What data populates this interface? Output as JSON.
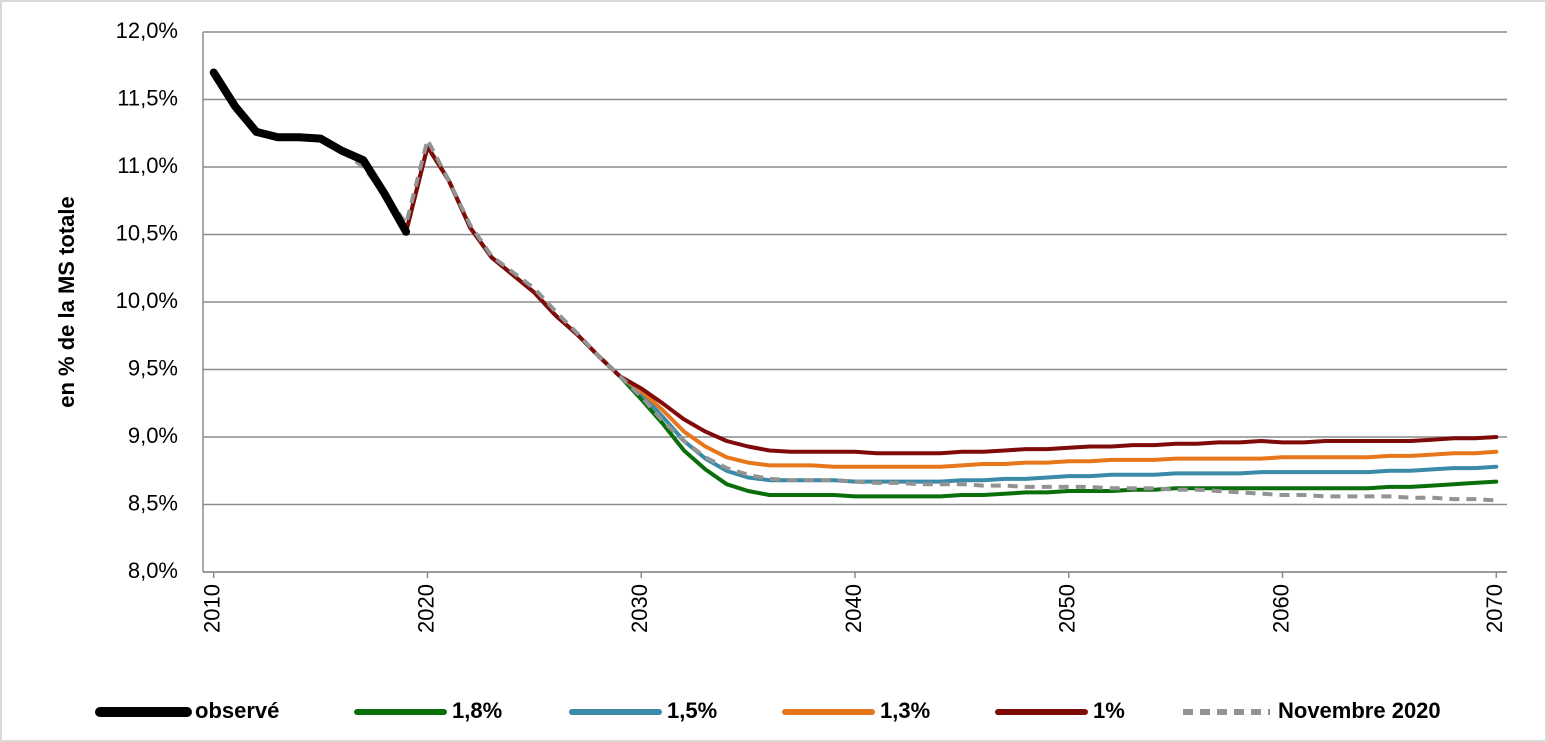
{
  "chart_data": {
    "type": "line",
    "y_label": "en % de la MS totale",
    "x": [
      2010,
      2011,
      2012,
      2013,
      2014,
      2015,
      2016,
      2017,
      2018,
      2019,
      2020,
      2021,
      2022,
      2023,
      2024,
      2025,
      2026,
      2027,
      2028,
      2029,
      2030,
      2031,
      2032,
      2033,
      2034,
      2035,
      2036,
      2037,
      2038,
      2039,
      2040,
      2041,
      2042,
      2043,
      2044,
      2045,
      2046,
      2047,
      2048,
      2049,
      2050,
      2051,
      2052,
      2053,
      2054,
      2055,
      2056,
      2057,
      2058,
      2059,
      2060,
      2061,
      2062,
      2063,
      2064,
      2065,
      2066,
      2067,
      2068,
      2069,
      2070
    ],
    "series": [
      {
        "name": "observé",
        "color": "#000000",
        "width": 8,
        "values": [
          11.7,
          11.45,
          11.26,
          11.22,
          11.22,
          11.21,
          11.12,
          11.05,
          10.8,
          10.52,
          null,
          null,
          null,
          null,
          null,
          null,
          null,
          null,
          null,
          null,
          null,
          null,
          null,
          null,
          null,
          null,
          null,
          null,
          null,
          null,
          null,
          null,
          null,
          null,
          null,
          null,
          null,
          null,
          null,
          null,
          null,
          null,
          null,
          null,
          null,
          null,
          null,
          null,
          null,
          null,
          null,
          null,
          null,
          null,
          null,
          null,
          null,
          null,
          null,
          null,
          null
        ]
      },
      {
        "name": "1,8%",
        "color": "#0a6e0a",
        "width": 4,
        "values": [
          null,
          null,
          null,
          null,
          null,
          null,
          null,
          null,
          null,
          10.52,
          11.15,
          10.9,
          10.55,
          10.33,
          10.2,
          10.07,
          9.9,
          9.76,
          9.6,
          9.45,
          9.28,
          9.1,
          8.9,
          8.76,
          8.65,
          8.6,
          8.57,
          8.57,
          8.57,
          8.57,
          8.56,
          8.56,
          8.56,
          8.56,
          8.56,
          8.57,
          8.57,
          8.58,
          8.59,
          8.59,
          8.6,
          8.6,
          8.6,
          8.61,
          8.61,
          8.62,
          8.62,
          8.62,
          8.62,
          8.62,
          8.62,
          8.62,
          8.62,
          8.62,
          8.62,
          8.63,
          8.63,
          8.64,
          8.65,
          8.66,
          8.67
        ]
      },
      {
        "name": "1,5%",
        "color": "#3a8aa8",
        "width": 4,
        "values": [
          null,
          null,
          null,
          null,
          null,
          null,
          null,
          null,
          null,
          10.52,
          11.15,
          10.9,
          10.55,
          10.33,
          10.2,
          10.07,
          9.9,
          9.76,
          9.6,
          9.45,
          9.32,
          9.15,
          8.97,
          8.84,
          8.75,
          8.7,
          8.68,
          8.68,
          8.68,
          8.68,
          8.67,
          8.67,
          8.67,
          8.67,
          8.67,
          8.68,
          8.68,
          8.69,
          8.69,
          8.7,
          8.71,
          8.71,
          8.72,
          8.72,
          8.72,
          8.73,
          8.73,
          8.73,
          8.73,
          8.74,
          8.74,
          8.74,
          8.74,
          8.74,
          8.74,
          8.75,
          8.75,
          8.76,
          8.77,
          8.77,
          8.78
        ]
      },
      {
        "name": "1,3%",
        "color": "#e8761a",
        "width": 4,
        "values": [
          null,
          null,
          null,
          null,
          null,
          null,
          null,
          null,
          null,
          10.52,
          11.15,
          10.9,
          10.55,
          10.33,
          10.2,
          10.07,
          9.9,
          9.76,
          9.6,
          9.45,
          9.34,
          9.2,
          9.04,
          8.93,
          8.85,
          8.81,
          8.79,
          8.79,
          8.79,
          8.78,
          8.78,
          8.78,
          8.78,
          8.78,
          8.78,
          8.79,
          8.8,
          8.8,
          8.81,
          8.81,
          8.82,
          8.82,
          8.83,
          8.83,
          8.83,
          8.84,
          8.84,
          8.84,
          8.84,
          8.84,
          8.85,
          8.85,
          8.85,
          8.85,
          8.85,
          8.86,
          8.86,
          8.87,
          8.88,
          8.88,
          8.89
        ]
      },
      {
        "name": "1%",
        "color": "#7f0a0a",
        "width": 4,
        "values": [
          null,
          null,
          null,
          null,
          null,
          null,
          null,
          null,
          null,
          10.52,
          11.15,
          10.9,
          10.55,
          10.33,
          10.2,
          10.07,
          9.9,
          9.76,
          9.6,
          9.45,
          9.36,
          9.25,
          9.13,
          9.04,
          8.97,
          8.93,
          8.9,
          8.89,
          8.89,
          8.89,
          8.89,
          8.88,
          8.88,
          8.88,
          8.88,
          8.89,
          8.89,
          8.9,
          8.91,
          8.91,
          8.92,
          8.93,
          8.93,
          8.94,
          8.94,
          8.95,
          8.95,
          8.96,
          8.96,
          8.97,
          8.96,
          8.96,
          8.97,
          8.97,
          8.97,
          8.97,
          8.97,
          8.98,
          8.99,
          8.99,
          9.0
        ]
      },
      {
        "name": "Novembre 2020",
        "color": "#939393",
        "width": 4,
        "line_style": "dashed",
        "values": [
          null,
          null,
          null,
          null,
          null,
          null,
          11.12,
          11.0,
          10.8,
          10.58,
          11.2,
          10.9,
          10.57,
          10.34,
          10.22,
          10.1,
          9.93,
          9.77,
          9.6,
          9.45,
          9.3,
          9.12,
          8.97,
          8.85,
          8.77,
          8.72,
          8.69,
          8.68,
          8.68,
          8.68,
          8.67,
          8.66,
          8.66,
          8.65,
          8.65,
          8.65,
          8.64,
          8.64,
          8.63,
          8.63,
          8.63,
          8.63,
          8.62,
          8.62,
          8.62,
          8.61,
          8.61,
          8.6,
          8.59,
          8.58,
          8.57,
          8.57,
          8.56,
          8.56,
          8.56,
          8.56,
          8.55,
          8.55,
          8.54,
          8.54,
          8.53
        ]
      }
    ],
    "xlim": [
      2009.5,
      2070.5
    ],
    "ylim": [
      8,
      12
    ],
    "xticks": [
      2010,
      2020,
      2030,
      2040,
      2050,
      2060,
      2070
    ],
    "yticks": [
      {
        "value": 8,
        "label": "8,0%"
      },
      {
        "value": 8.5,
        "label": "8,5%"
      },
      {
        "value": 9,
        "label": "9,0%"
      },
      {
        "value": 9.5,
        "label": "9,5%"
      },
      {
        "value": 10,
        "label": "10,0%"
      },
      {
        "value": 10.5,
        "label": "10,5%"
      },
      {
        "value": 11,
        "label": "11,0%"
      },
      {
        "value": 11.5,
        "label": "11,5%"
      },
      {
        "value": 12,
        "label": "12,0%"
      }
    ],
    "grid": true,
    "legend": "bottom"
  }
}
